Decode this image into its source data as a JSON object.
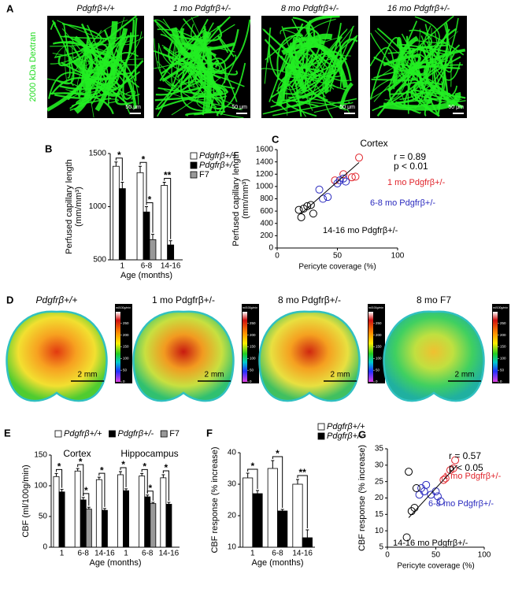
{
  "figure": {
    "panel_a": {
      "label": "A",
      "side_label": "2000 kDa Dextran",
      "images": [
        {
          "title": "Pdgfrβ+/+",
          "scale": "50 μm"
        },
        {
          "title": "1 mo Pdgfrβ+/-",
          "scale": "50 μm"
        },
        {
          "title": "8 mo Pdgfrβ+/-",
          "scale": "50 μm"
        },
        {
          "title": "16 mo Pdgfrβ+/-",
          "scale": "50 μm"
        }
      ]
    },
    "panel_d": {
      "label": "D",
      "images": [
        {
          "title": "Pdgfrβ+/+",
          "scale": "2 mm",
          "colorbar": {
            "unit": "ml/100g/min",
            "clim": [
              0,
              300
            ],
            "ticks": [
              250,
              200,
              150,
              100,
              50,
              0
            ]
          }
        },
        {
          "title": "1 mo Pdgfrβ+/-",
          "scale": "2 mm",
          "colorbar": {
            "unit": "ml/100g/min",
            "clim": [
              0,
              300
            ],
            "ticks": [
              250,
              200,
              150,
              100,
              50,
              0
            ]
          }
        },
        {
          "title": "8 mo Pdgfrβ+/-",
          "scale": "2 mm",
          "colorbar": {
            "unit": "ml/100g/min",
            "clim": [
              0,
              300
            ],
            "ticks": [
              250,
              200,
              150,
              100,
              50,
              0
            ]
          }
        },
        {
          "title": "8 mo F7",
          "scale": "2 mm",
          "colorbar": {
            "unit": "ml/100g/min",
            "clim": [
              0,
              300
            ],
            "ticks": [
              250,
              200,
              150,
              100,
              50,
              0
            ]
          }
        }
      ]
    }
  },
  "chart_data": [
    {
      "type": "bar",
      "panel": "B",
      "ylabel": [
        "Perfused capillary length",
        "(mm/mm³)"
      ],
      "xlabel": "Age (months)",
      "categories": [
        "1",
        "6-8",
        "14-16"
      ],
      "ylim": [
        500,
        1500
      ],
      "yticks": [
        500,
        1000,
        1500
      ],
      "legend": "right",
      "series": [
        {
          "name": "Pdgfrβ+/+",
          "color": "#ffffff",
          "values": [
            1380,
            1320,
            1200
          ],
          "errors": [
            40,
            60,
            30
          ]
        },
        {
          "name": "Pdgfrβ+/-",
          "color": "#000000",
          "values": [
            1170,
            950,
            640
          ],
          "errors": [
            60,
            50,
            40
          ]
        },
        {
          "name": "F7",
          "color": "#999999",
          "values": [
            null,
            690,
            null
          ],
          "errors": [
            null,
            50,
            null
          ]
        }
      ],
      "significance": [
        {
          "category": 0,
          "between": [
            0,
            1
          ],
          "text": "*"
        },
        {
          "category": 1,
          "between": [
            0,
            1
          ],
          "text": "*"
        },
        {
          "category": 1,
          "between": [
            1,
            2
          ],
          "text": "*"
        },
        {
          "category": 2,
          "between": [
            0,
            1
          ],
          "text": "**"
        }
      ]
    },
    {
      "type": "scatter",
      "panel": "C",
      "ylabel": [
        "Perfused capillary length",
        "(mm/mm³)"
      ],
      "xlabel": "Pericyte coverage (%)",
      "xlim": [
        0,
        100
      ],
      "xticks": [
        0,
        50,
        100
      ],
      "ylim": [
        0,
        1600
      ],
      "yticks": [
        0,
        200,
        400,
        600,
        800,
        1000,
        1200,
        1400,
        1600
      ],
      "annotations": [
        "Cortex",
        "r = 0.89",
        "p < 0.01"
      ],
      "fit": {
        "x": [
          20,
          68
        ],
        "y": [
          560,
          1390
        ]
      },
      "series": [
        {
          "name": "1 mo Pdgfrβ+/-",
          "color": "#e0242b",
          "x": [
            48,
            55,
            62,
            65,
            68
          ],
          "y": [
            1100,
            1200,
            1150,
            1160,
            1470
          ]
        },
        {
          "name": "6-8 mo Pdgfrβ+/-",
          "color": "#2b2bbf",
          "x": [
            35,
            38,
            42,
            50,
            52,
            55,
            57
          ],
          "y": [
            950,
            800,
            830,
            1050,
            1100,
            1130,
            1080
          ]
        },
        {
          "name": "14-16 mo Pdgfrβ+/-",
          "color": "#000000",
          "x": [
            18,
            20,
            22,
            25,
            28,
            30
          ],
          "y": [
            620,
            500,
            640,
            680,
            700,
            560
          ]
        }
      ]
    },
    {
      "type": "bar",
      "panel": "E",
      "ylabel": [
        "CBF (ml/100g/min)"
      ],
      "xlabel": "Age (months)",
      "categories": [
        "1",
        "6-8",
        "14-16",
        "1",
        "6-8",
        "14-16"
      ],
      "groups": [
        "Cortex",
        "Hippocampus"
      ],
      "ylim": [
        0,
        150
      ],
      "yticks": [
        0,
        50,
        100,
        150
      ],
      "legend": "top",
      "series": [
        {
          "name": "Pdgfrβ+/+",
          "color": "#ffffff",
          "values": [
            115,
            124,
            110,
            118,
            116,
            113
          ],
          "errors": [
            5,
            4,
            4,
            5,
            4,
            5
          ]
        },
        {
          "name": "Pdgfrβ+/-",
          "color": "#000000",
          "values": [
            90,
            77,
            60,
            92,
            82,
            70
          ],
          "errors": [
            4,
            4,
            3,
            3,
            3,
            3
          ]
        },
        {
          "name": "F7",
          "color": "#999999",
          "values": [
            null,
            62,
            null,
            null,
            71,
            null
          ],
          "errors": [
            null,
            3,
            null,
            null,
            2,
            null
          ]
        }
      ],
      "significance": [
        {
          "category": 0,
          "between": [
            0,
            1
          ],
          "text": "*"
        },
        {
          "category": 1,
          "between": [
            0,
            1
          ],
          "text": "*"
        },
        {
          "category": 1,
          "between": [
            1,
            2
          ],
          "text": "*"
        },
        {
          "category": 2,
          "between": [
            0,
            1
          ],
          "text": "*"
        },
        {
          "category": 3,
          "between": [
            0,
            1
          ],
          "text": "*"
        },
        {
          "category": 4,
          "between": [
            0,
            1
          ],
          "text": "*"
        },
        {
          "category": 4,
          "between": [
            1,
            2
          ],
          "text": "*"
        },
        {
          "category": 5,
          "between": [
            0,
            1
          ],
          "text": "*"
        }
      ]
    },
    {
      "type": "bar",
      "panel": "F",
      "ylabel": [
        "CBF response (% increase)"
      ],
      "xlabel": "Age (months)",
      "categories": [
        "1",
        "6-8",
        "14-16"
      ],
      "ylim": [
        10,
        40
      ],
      "yticks": [
        10,
        20,
        30,
        40
      ],
      "legend": "top-right",
      "series": [
        {
          "name": "Pdgfrβ+/+",
          "color": "#ffffff",
          "values": [
            32,
            35,
            30
          ],
          "errors": [
            1.5,
            2.5,
            1.5
          ]
        },
        {
          "name": "Pdgfrβ+/-",
          "color": "#000000",
          "values": [
            27,
            21.5,
            13
          ],
          "errors": [
            1,
            0.5,
            2.5
          ]
        }
      ],
      "significance": [
        {
          "category": 0,
          "between": [
            0,
            1
          ],
          "text": "*"
        },
        {
          "category": 1,
          "between": [
            0,
            1
          ],
          "text": "*"
        },
        {
          "category": 2,
          "between": [
            0,
            1
          ],
          "text": "**"
        }
      ]
    },
    {
      "type": "scatter",
      "panel": "G",
      "ylabel": [
        "CBF response (% increase)"
      ],
      "xlabel": "Pericyte coverage (%)",
      "xlim": [
        0,
        100
      ],
      "xticks": [
        0,
        50,
        100
      ],
      "ylim": [
        5,
        35
      ],
      "yticks": [
        5,
        10,
        15,
        20,
        25,
        30,
        35
      ],
      "annotations": [
        "r = 0.57",
        "p < 0.05"
      ],
      "fit": {
        "x": [
          22,
          72
        ],
        "y": [
          14,
          30
        ]
      },
      "series": [
        {
          "name": "1 mo Pdgfrβ+/-",
          "color": "#e0242b",
          "x": [
            58,
            60,
            65,
            68,
            70
          ],
          "y": [
            25.5,
            26,
            28.5,
            29,
            31.5
          ]
        },
        {
          "name": "6-8 mo Pdgfrβ+/-",
          "color": "#2b2bbf",
          "x": [
            33,
            35,
            38,
            40,
            45,
            50,
            52,
            55
          ],
          "y": [
            21,
            23,
            22,
            24,
            21,
            22,
            20.5,
            19
          ]
        },
        {
          "name": "14-16 mo Pdgfrβ+/-",
          "color": "#000000",
          "x": [
            20,
            22,
            25,
            28,
            30
          ],
          "y": [
            8,
            28,
            16,
            17,
            23
          ]
        }
      ]
    }
  ]
}
